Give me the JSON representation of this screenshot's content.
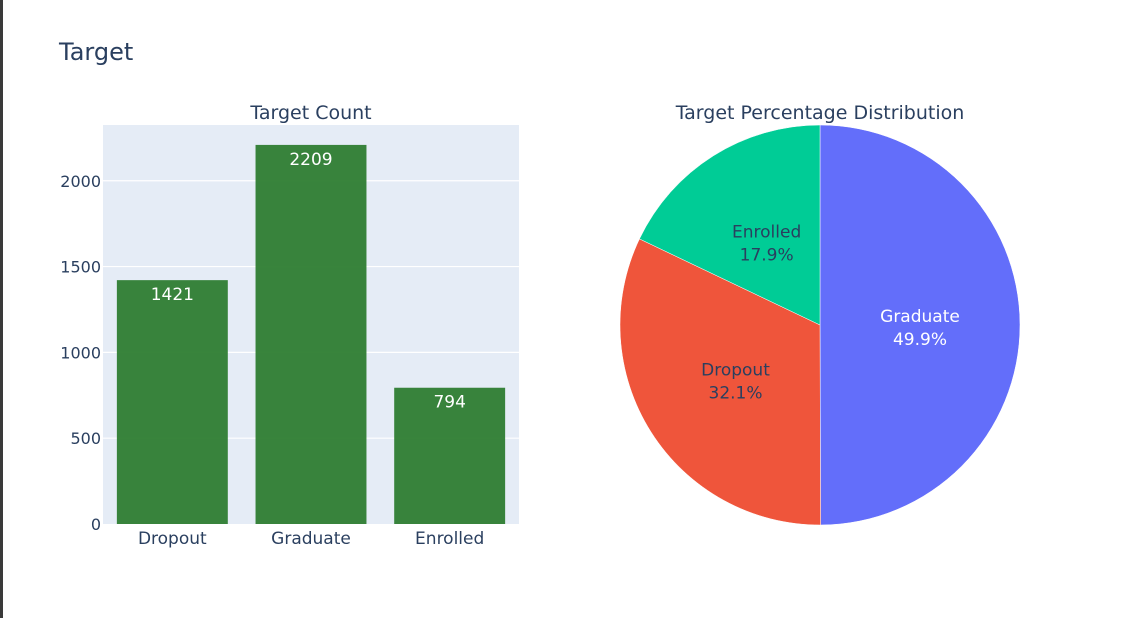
{
  "figure": {
    "title": "Target"
  },
  "chart_data": [
    {
      "type": "bar",
      "title": "Target Count",
      "categories": [
        "Dropout",
        "Graduate",
        "Enrolled"
      ],
      "values": [
        1421,
        2209,
        794
      ],
      "data_labels": [
        "1421",
        "2209",
        "794"
      ],
      "xlabel": "",
      "ylabel": "",
      "ylim": [
        0,
        2325
      ],
      "yticks": [
        0,
        500,
        1000,
        1500,
        2000
      ],
      "ytick_labels": [
        "0",
        "500",
        "1000",
        "1500",
        "2000"
      ],
      "grid": true,
      "bar_color": "#2e7d32",
      "plot_bg": "#e5ecf6"
    },
    {
      "type": "pie",
      "title": "Target Percentage Distribution",
      "labels": [
        "Graduate",
        "Dropout",
        "Enrolled"
      ],
      "percents": [
        49.9,
        32.1,
        17.9
      ],
      "percent_labels": [
        "49.9%",
        "32.1%",
        "17.9%"
      ],
      "colors": [
        "#636efa",
        "#ef553b",
        "#00cc96"
      ],
      "label_colors": [
        "#ffffff",
        "#2a3f5f",
        "#2a3f5f"
      ]
    }
  ]
}
